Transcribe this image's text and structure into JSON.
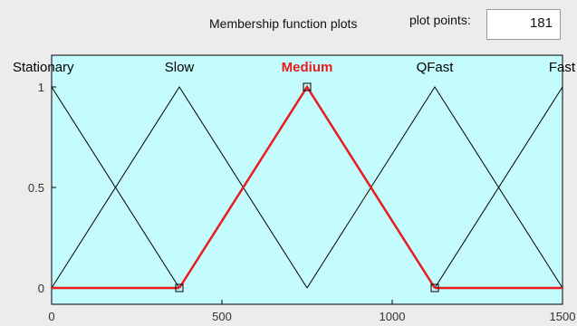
{
  "header": {
    "title": "Membership function plots",
    "plot_points_label": "plot points:",
    "plot_points_value": "181"
  },
  "colors": {
    "plot_background": "#c4fbfc",
    "curve": "#000000",
    "selected_curve": "#e81c1c"
  },
  "chart_data": {
    "type": "line",
    "title": "",
    "xlabel": "",
    "ylabel": "",
    "xlim": [
      0,
      1500
    ],
    "ylim": [
      0,
      1
    ],
    "x_ticks": [
      "0",
      "500",
      "1000",
      "1500"
    ],
    "y_ticks": [
      "0",
      "0.5",
      "1"
    ],
    "series": [
      {
        "name": "Stationary",
        "points": [
          [
            0,
            1
          ],
          [
            375,
            0
          ]
        ],
        "selected": false
      },
      {
        "name": "Slow",
        "points": [
          [
            0,
            0
          ],
          [
            375,
            1
          ],
          [
            750,
            0
          ]
        ],
        "selected": false
      },
      {
        "name": "Medium",
        "points": [
          [
            375,
            0
          ],
          [
            750,
            1
          ],
          [
            1125,
            0
          ]
        ],
        "selected": true
      },
      {
        "name": "QFast",
        "points": [
          [
            750,
            0
          ],
          [
            1125,
            1
          ],
          [
            1500,
            0
          ]
        ],
        "selected": false
      },
      {
        "name": "Fast",
        "points": [
          [
            1125,
            0
          ],
          [
            1500,
            1
          ]
        ],
        "selected": false
      }
    ],
    "selected_markers": [
      [
        375,
        0
      ],
      [
        750,
        1
      ],
      [
        1125,
        0
      ]
    ]
  }
}
